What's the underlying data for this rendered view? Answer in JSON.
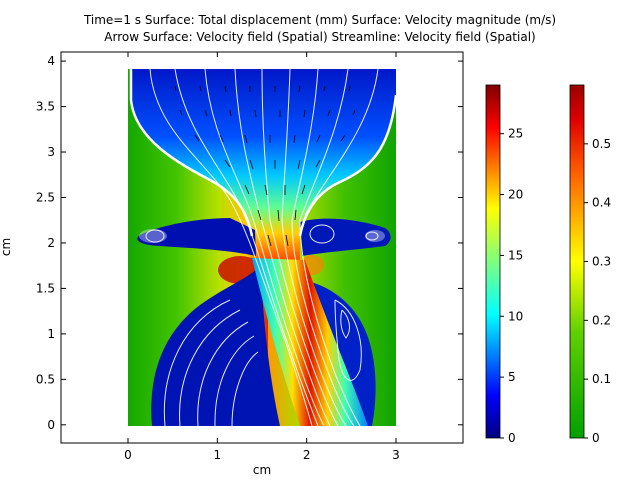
{
  "chart_data": [
    {
      "type": "heatmap",
      "title_line1": "Time=1 s   Surface: Total displacement (mm)  Surface: Velocity magnitude (m/s)",
      "title_line2": "Arrow Surface: Velocity field (Spatial)  Streamline: Velocity field (Spatial)",
      "xlabel": "cm",
      "ylabel": "cm",
      "xlim": [
        -0.75,
        3.75
      ],
      "ylim": [
        -0.2,
        4.1
      ],
      "xticks": [
        "0",
        "1",
        "2",
        "3"
      ],
      "yticks": [
        "0",
        "0.5",
        "1",
        "1.5",
        "2",
        "2.5",
        "3",
        "3.5",
        "4"
      ],
      "domain_x": [
        0,
        3
      ],
      "domain_y": [
        0,
        4
      ],
      "layers": [
        "Total displacement (mm)",
        "Velocity magnitude (m/s)",
        "Velocity field (Spatial)"
      ]
    },
    {
      "type": "heatmap",
      "name": "colorbar-velocity",
      "colormap": "rainbow",
      "range": [
        0,
        29
      ],
      "ticks": [
        "0",
        "5",
        "10",
        "15",
        "20",
        "25"
      ]
    },
    {
      "type": "heatmap",
      "name": "colorbar-displacement",
      "colormap": "traffic",
      "range": [
        0,
        0.6
      ],
      "ticks": [
        "0",
        "0.1",
        "0.2",
        "0.3",
        "0.4",
        "0.5"
      ]
    }
  ]
}
